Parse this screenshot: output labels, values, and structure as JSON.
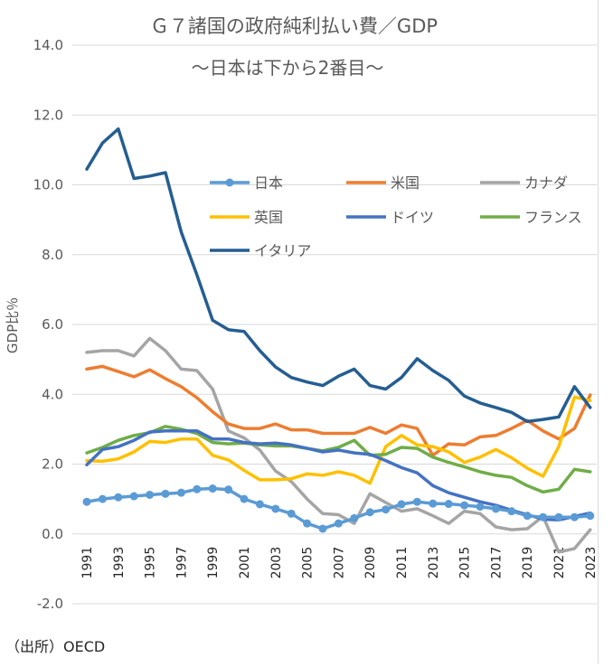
{
  "chart_data": {
    "type": "line",
    "title": "Ｇ７諸国の政府純利払い費／GDP",
    "subtitle": "～日本は下から2番目～",
    "xlabel": "",
    "ylabel": "GDP比％",
    "ylim": [
      -2.0,
      14.0
    ],
    "yticks": [
      -2.0,
      0.0,
      2.0,
      4.0,
      6.0,
      8.0,
      10.0,
      12.0,
      14.0
    ],
    "ytick_labels": [
      "-2.0",
      "0.0",
      "2.0",
      "4.0",
      "6.0",
      "8.0",
      "10.0",
      "12.0",
      "14.0"
    ],
    "x": [
      1991,
      1992,
      1993,
      1994,
      1995,
      1996,
      1997,
      1998,
      1999,
      2000,
      2001,
      2002,
      2003,
      2004,
      2005,
      2006,
      2007,
      2008,
      2009,
      2010,
      2011,
      2012,
      2013,
      2014,
      2015,
      2016,
      2017,
      2018,
      2019,
      2020,
      2021,
      2022,
      2023
    ],
    "xtick_labels": [
      "1991",
      "1993",
      "1995",
      "1997",
      "1999",
      "2001",
      "2003",
      "2005",
      "2007",
      "2009",
      "2011",
      "2013",
      "2015",
      "2017",
      "2019",
      "2021",
      "2023"
    ],
    "grid": "horizontal",
    "legend_position": "inside-top",
    "series": [
      {
        "name": "日本",
        "color": "#5b9bd5",
        "marker": true,
        "values": [
          0.92,
          1.0,
          1.05,
          1.08,
          1.12,
          1.15,
          1.18,
          1.28,
          1.3,
          1.27,
          1.0,
          0.85,
          0.72,
          0.58,
          0.3,
          0.15,
          0.3,
          0.45,
          0.62,
          0.7,
          0.85,
          0.92,
          0.87,
          0.86,
          0.82,
          0.78,
          0.72,
          0.65,
          0.52,
          0.48,
          0.48,
          0.48,
          0.52
        ]
      },
      {
        "name": "米国",
        "color": "#ed7d31",
        "marker": false,
        "values": [
          4.72,
          4.8,
          4.65,
          4.5,
          4.7,
          4.45,
          4.22,
          3.9,
          3.5,
          3.15,
          3.02,
          3.02,
          3.15,
          2.98,
          2.98,
          2.88,
          2.88,
          2.88,
          3.05,
          2.88,
          3.12,
          3.02,
          2.25,
          2.58,
          2.55,
          2.78,
          2.82,
          3.02,
          3.25,
          2.95,
          2.72,
          3.02,
          3.98
        ]
      },
      {
        "name": "カナダ",
        "color": "#a5a5a5",
        "marker": false,
        "values": [
          5.2,
          5.25,
          5.25,
          5.1,
          5.6,
          5.25,
          4.72,
          4.68,
          4.15,
          2.95,
          2.75,
          2.4,
          1.8,
          1.5,
          1.0,
          0.58,
          0.55,
          0.3,
          1.15,
          0.9,
          0.65,
          0.72,
          0.52,
          0.3,
          0.65,
          0.58,
          0.2,
          0.12,
          0.15,
          0.5,
          -0.52,
          -0.42,
          0.12
        ]
      },
      {
        "name": "英国",
        "color": "#ffc000",
        "marker": false,
        "values": [
          2.1,
          2.08,
          2.15,
          2.35,
          2.65,
          2.62,
          2.72,
          2.72,
          2.25,
          2.12,
          1.82,
          1.55,
          1.55,
          1.58,
          1.72,
          1.68,
          1.78,
          1.68,
          1.45,
          2.5,
          2.82,
          2.55,
          2.5,
          2.35,
          2.05,
          2.2,
          2.42,
          2.18,
          1.88,
          1.65,
          2.5,
          3.92,
          3.82
        ]
      },
      {
        "name": "ドイツ",
        "color": "#4472c4",
        "marker": false,
        "values": [
          1.98,
          2.42,
          2.5,
          2.68,
          2.92,
          2.95,
          2.95,
          2.95,
          2.72,
          2.72,
          2.62,
          2.58,
          2.6,
          2.55,
          2.45,
          2.35,
          2.4,
          2.32,
          2.28,
          2.1,
          1.9,
          1.75,
          1.38,
          1.18,
          1.05,
          0.92,
          0.82,
          0.68,
          0.55,
          0.42,
          0.4,
          0.5,
          0.6
        ]
      },
      {
        "name": "フランス",
        "color": "#70ad47",
        "marker": false,
        "values": [
          2.32,
          2.48,
          2.68,
          2.82,
          2.9,
          3.08,
          3.0,
          2.88,
          2.62,
          2.58,
          2.6,
          2.55,
          2.52,
          2.52,
          2.45,
          2.38,
          2.48,
          2.68,
          2.25,
          2.28,
          2.48,
          2.45,
          2.2,
          2.05,
          1.92,
          1.78,
          1.68,
          1.62,
          1.38,
          1.2,
          1.28,
          1.85,
          1.78
        ]
      },
      {
        "name": "イタリア",
        "color": "#255e91",
        "marker": false,
        "values": [
          10.45,
          11.2,
          11.6,
          10.18,
          10.25,
          10.35,
          8.65,
          7.42,
          6.12,
          5.85,
          5.8,
          5.25,
          4.78,
          4.48,
          4.35,
          4.25,
          4.52,
          4.72,
          4.25,
          4.15,
          4.48,
          5.02,
          4.68,
          4.4,
          3.95,
          3.75,
          3.62,
          3.48,
          3.22,
          3.28,
          3.35,
          4.22,
          3.62
        ]
      }
    ]
  },
  "source_note": "（出所）OECD"
}
